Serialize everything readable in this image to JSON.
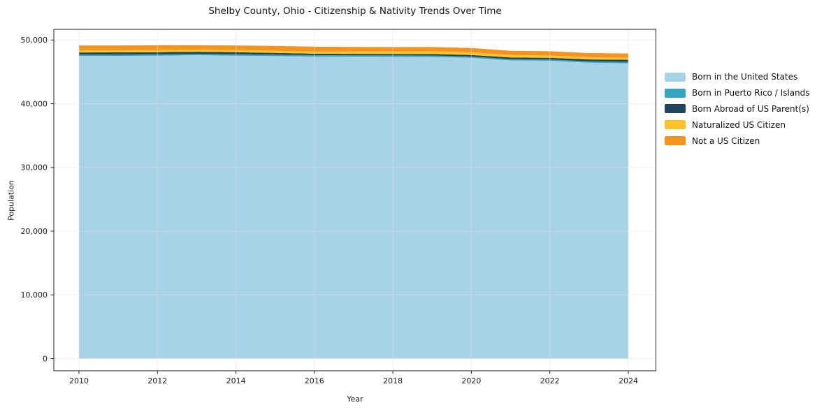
{
  "title": "Shelby County, Ohio - Citizenship & Nativity Trends Over Time",
  "chart_data": {
    "type": "area",
    "stacked": true,
    "title": "Shelby County, Ohio - Citizenship & Nativity Trends Over Time",
    "xlabel": "Year",
    "ylabel": "Population",
    "x": [
      2010,
      2011,
      2012,
      2013,
      2014,
      2015,
      2016,
      2017,
      2018,
      2019,
      2020,
      2021,
      2022,
      2023,
      2024
    ],
    "series": [
      {
        "name": "Born in the United States",
        "color": "#A8D3E6",
        "values": [
          47500,
          47510,
          47540,
          47620,
          47550,
          47480,
          47400,
          47380,
          47360,
          47350,
          47200,
          46800,
          46750,
          46450,
          46350
        ]
      },
      {
        "name": "Born in Puerto Rico / Islands",
        "color": "#38A3BE",
        "values": [
          220,
          215,
          210,
          200,
          210,
          215,
          220,
          220,
          220,
          220,
          200,
          185,
          180,
          200,
          220
        ]
      },
      {
        "name": "Born Abroad of US Parent(s)",
        "color": "#21455A",
        "values": [
          330,
          335,
          340,
          340,
          330,
          280,
          230,
          230,
          230,
          230,
          250,
          280,
          280,
          300,
          330
        ]
      },
      {
        "name": "Naturalized US Citizen",
        "color": "#FCC32D",
        "values": [
          330,
          330,
          335,
          330,
          340,
          330,
          330,
          360,
          400,
          440,
          420,
          380,
          360,
          340,
          330
        ]
      },
      {
        "name": "Not a US Citizen",
        "color": "#F6921E",
        "values": [
          770,
          760,
          750,
          700,
          720,
          760,
          770,
          720,
          680,
          660,
          680,
          670,
          660,
          660,
          660
        ]
      }
    ],
    "xticks": [
      2010,
      2012,
      2014,
      2016,
      2018,
      2020,
      2022,
      2024
    ],
    "yticks": [
      0,
      10000,
      20000,
      30000,
      40000,
      50000
    ],
    "ylim": [
      0,
      50000
    ],
    "grid": true,
    "legend_position": "right-outside",
    "axis_color": "#1f1f1f",
    "grid_color": "#dedede"
  }
}
